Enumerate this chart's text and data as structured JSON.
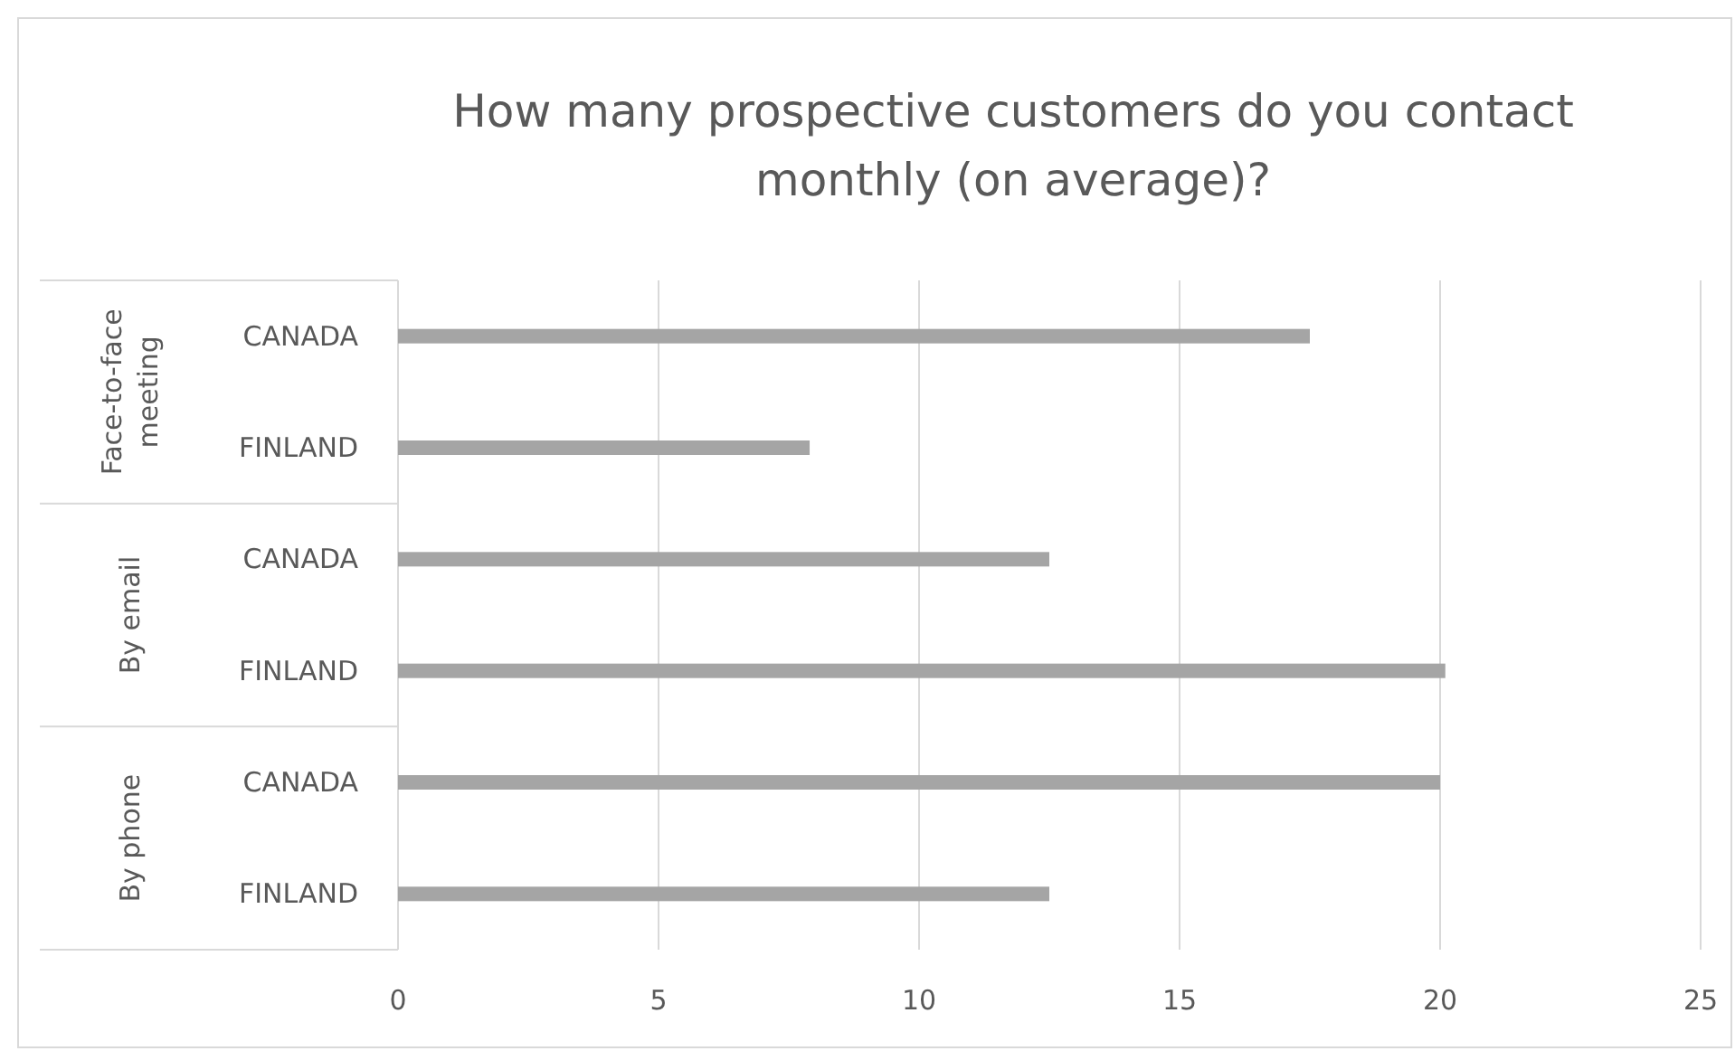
{
  "chart_data": {
    "type": "bar",
    "orientation": "horizontal",
    "title": "How many prospective customers do you contact monthly (on average)?",
    "categories": [
      "CANADA",
      "FINLAND",
      "CANADA",
      "FINLAND",
      "CANADA",
      "FINLAND"
    ],
    "values": [
      17.5,
      7.9,
      12.5,
      20.1,
      20,
      12.5
    ],
    "color": "#a5a5a5",
    "xlim": [
      0,
      25
    ],
    "xticks": [
      0,
      5,
      10,
      15,
      20,
      25
    ],
    "grid": "x",
    "annotations": [
      "Face-to-face meeting",
      "By email",
      "By phone"
    ]
  }
}
